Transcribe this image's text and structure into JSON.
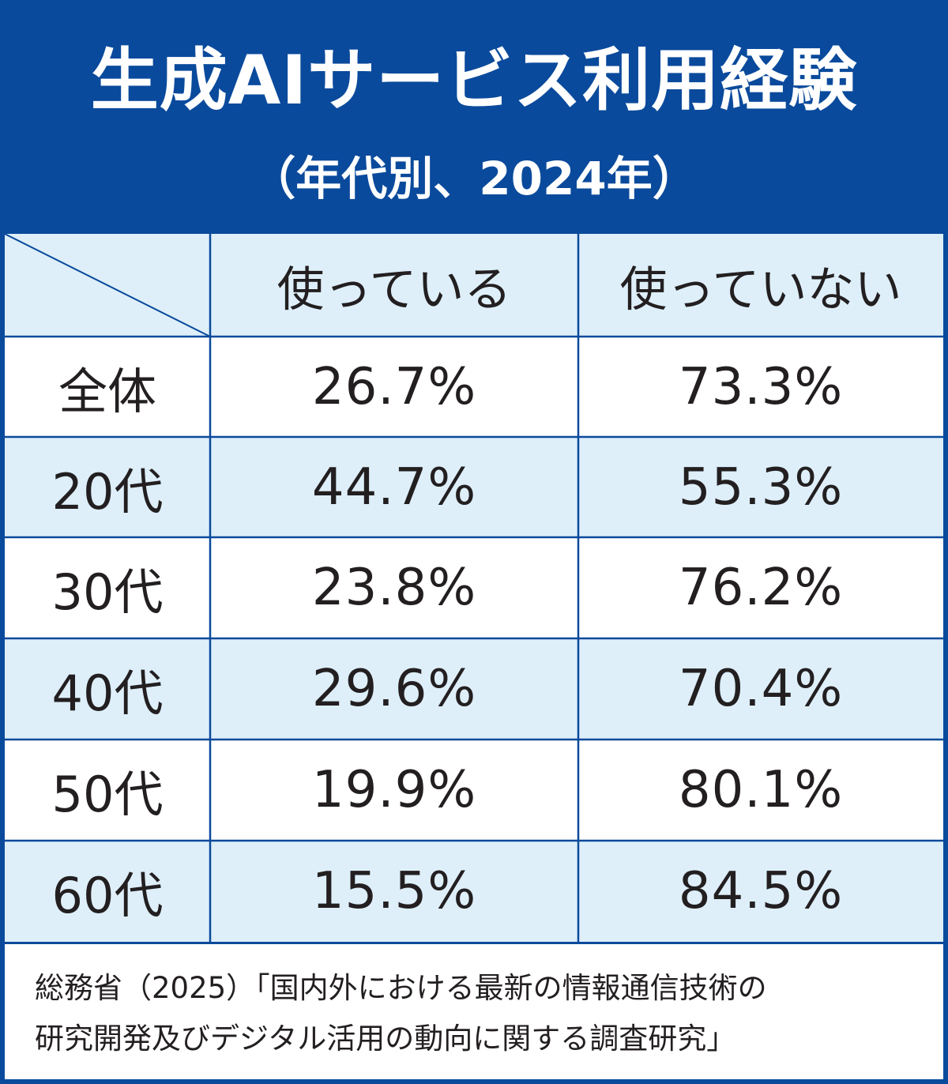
{
  "chart_data": {
    "type": "table",
    "title": "生成AIサービス利用経験",
    "subtitle": "（年代別、2024年）",
    "columns": [
      "使っている",
      "使っていない"
    ],
    "rows": [
      {
        "label": "全体",
        "values": [
          "26.7%",
          "73.3%"
        ]
      },
      {
        "label": "20代",
        "values": [
          "44.7%",
          "55.3%"
        ]
      },
      {
        "label": "30代",
        "values": [
          "23.8%",
          "76.2%"
        ]
      },
      {
        "label": "40代",
        "values": [
          "29.6%",
          "70.4%"
        ]
      },
      {
        "label": "50代",
        "values": [
          "19.9%",
          "80.1%"
        ]
      },
      {
        "label": "60代",
        "values": [
          "15.5%",
          "84.5%"
        ]
      }
    ]
  },
  "source": {
    "line1": "総務省（2025）「国内外における最新の情報通信技術の",
    "line2": "研究開発及びデジタル活用の動向に関する調査研究」"
  },
  "colors": {
    "header_bg": "#0a4a9c",
    "stripe_bg": "#deeffa",
    "grid": "#0a4a9c",
    "text": "#231f20"
  }
}
